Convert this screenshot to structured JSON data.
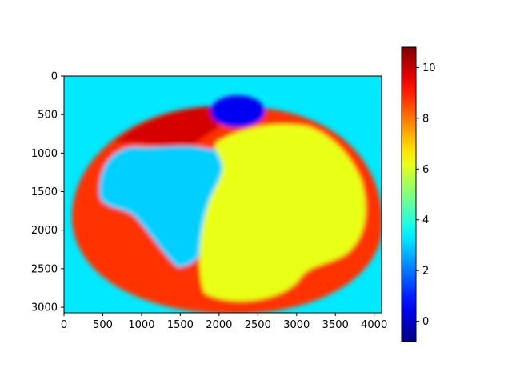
{
  "chart_data": {
    "type": "heatmap",
    "title": "",
    "xlabel": "",
    "ylabel": "",
    "x_ticks": [
      0,
      500,
      1000,
      1500,
      2000,
      2500,
      3000,
      3500,
      4000
    ],
    "y_ticks": [
      0,
      500,
      1000,
      1500,
      2000,
      2500,
      3000
    ],
    "xlim": [
      0,
      4096
    ],
    "ylim": [
      3072,
      0
    ],
    "image_width": 4096,
    "image_height": 3072,
    "colormap": "jet",
    "colorbar": {
      "ticks": [
        0,
        2,
        4,
        6,
        8,
        10
      ],
      "range": [
        -0.8,
        10.8
      ]
    },
    "regions": [
      {
        "name": "table-background",
        "value": 3.3
      },
      {
        "name": "plate-rim",
        "value": 8.8
      },
      {
        "name": "plate-rim-top",
        "value": 9.8
      },
      {
        "name": "left-food",
        "value": 3.0
      },
      {
        "name": "right-food",
        "value": 6.2
      },
      {
        "name": "bowl",
        "value": 0.5
      }
    ]
  }
}
